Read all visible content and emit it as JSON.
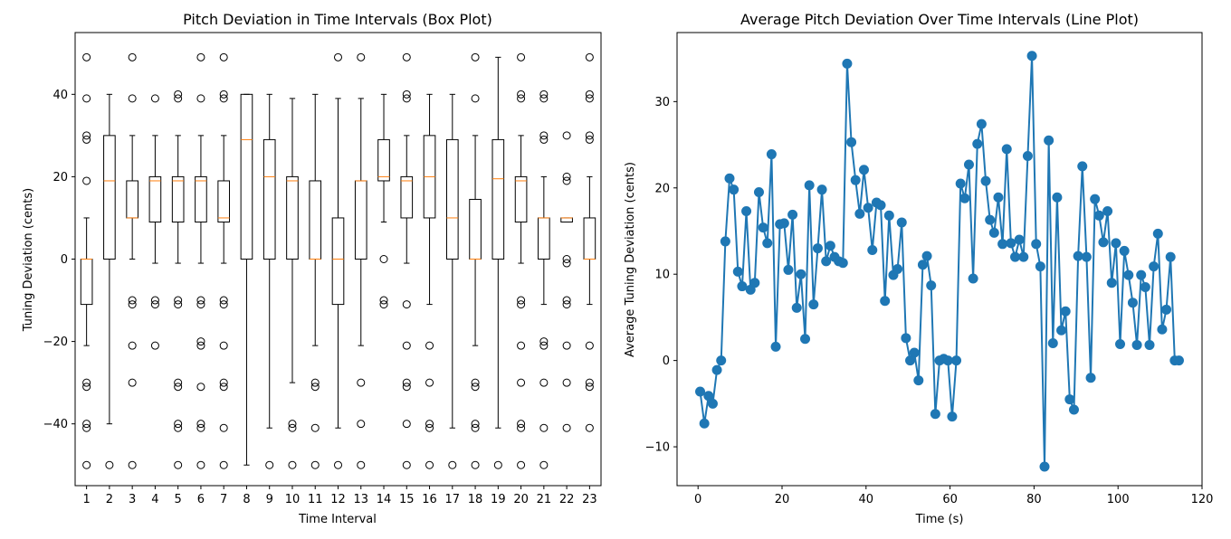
{
  "chart_data": [
    {
      "type": "box",
      "title": "Pitch Deviation in Time Intervals (Box Plot)",
      "xlabel": "Time Interval",
      "ylabel": "Tuning Deviation (cents)",
      "ylim": [
        -55,
        55
      ],
      "yticks": [
        -40,
        -20,
        0,
        20,
        40
      ],
      "categories": [
        "1",
        "2",
        "3",
        "4",
        "5",
        "6",
        "7",
        "8",
        "9",
        "10",
        "11",
        "12",
        "13",
        "14",
        "15",
        "16",
        "17",
        "18",
        "19",
        "20",
        "21",
        "22",
        "23"
      ],
      "box_color": "#000000",
      "median_color": "#ff7f0e",
      "boxes": [
        {
          "q1": -11,
          "median": 0,
          "q3": 0,
          "whislo": -21,
          "whishi": 10,
          "fliers": [
            49,
            39,
            30,
            29,
            19,
            -30,
            -31,
            -40,
            -41,
            -50
          ]
        },
        {
          "q1": 0,
          "median": 19,
          "q3": 30,
          "whislo": -40,
          "whishi": 40,
          "fliers": [
            -50
          ]
        },
        {
          "q1": 10,
          "median": 10,
          "q3": 19,
          "whislo": 0,
          "whishi": 30,
          "fliers": [
            49,
            39,
            -10,
            -11,
            -21,
            -30,
            -50
          ]
        },
        {
          "q1": 9,
          "median": 19,
          "q3": 20,
          "whislo": -1,
          "whishi": 30,
          "fliers": [
            39,
            -10,
            -11,
            -21
          ]
        },
        {
          "q1": 9,
          "median": 19,
          "q3": 20,
          "whislo": -1,
          "whishi": 30,
          "fliers": [
            40,
            39,
            -10,
            -11,
            -30,
            -31,
            -40,
            -41,
            -50
          ]
        },
        {
          "q1": 9,
          "median": 19,
          "q3": 20,
          "whislo": -1,
          "whishi": 30,
          "fliers": [
            49,
            39,
            -10,
            -11,
            -20,
            -21,
            -31,
            -40,
            -41,
            -50
          ]
        },
        {
          "q1": 9,
          "median": 10,
          "q3": 19,
          "whislo": -1,
          "whishi": 30,
          "fliers": [
            49,
            40,
            39,
            -10,
            -11,
            -21,
            -30,
            -31,
            -41,
            -50
          ]
        },
        {
          "q1": 0,
          "median": 29,
          "q3": 40,
          "whislo": -50,
          "whishi": 40,
          "fliers": []
        },
        {
          "q1": 0,
          "median": 20,
          "q3": 29,
          "whislo": -41,
          "whishi": 40,
          "fliers": [
            -50
          ]
        },
        {
          "q1": 0,
          "median": 19,
          "q3": 20,
          "whislo": -30,
          "whishi": 39,
          "fliers": [
            -40,
            -41,
            -50
          ]
        },
        {
          "q1": 0,
          "median": 0,
          "q3": 19,
          "whislo": -21,
          "whishi": 40,
          "fliers": [
            -30,
            -31,
            -41,
            -50
          ]
        },
        {
          "q1": -11,
          "median": 0,
          "q3": 10,
          "whislo": -41,
          "whishi": 39,
          "fliers": [
            49,
            -50
          ]
        },
        {
          "q1": 0,
          "median": 19,
          "q3": 19,
          "whislo": -21,
          "whishi": 39,
          "fliers": [
            49,
            -30,
            -40,
            -50
          ]
        },
        {
          "q1": 19,
          "median": 20,
          "q3": 29,
          "whislo": 9,
          "whishi": 40,
          "fliers": [
            0,
            -10,
            -11
          ]
        },
        {
          "q1": 10,
          "median": 19,
          "q3": 20,
          "whislo": -1,
          "whishi": 30,
          "fliers": [
            49,
            40,
            39,
            -11,
            -21,
            -30,
            -31,
            -40,
            -50
          ]
        },
        {
          "q1": 10,
          "median": 20,
          "q3": 30,
          "whislo": -11,
          "whishi": 40,
          "fliers": [
            -21,
            -30,
            -40,
            -41,
            -50
          ]
        },
        {
          "q1": 0,
          "median": 10,
          "q3": 29,
          "whislo": -41,
          "whishi": 40,
          "fliers": [
            -50
          ]
        },
        {
          "q1": 0,
          "median": 0,
          "q3": 14.5,
          "whislo": -21,
          "whishi": 30,
          "fliers": [
            49,
            39,
            -30,
            -31,
            -40,
            -41,
            -50
          ]
        },
        {
          "q1": 0,
          "median": 19.5,
          "q3": 29,
          "whislo": -41,
          "whishi": 49,
          "fliers": [
            -50
          ]
        },
        {
          "q1": 9,
          "median": 19,
          "q3": 20,
          "whislo": -1,
          "whishi": 30,
          "fliers": [
            49,
            40,
            39,
            -10,
            -11,
            -21,
            -30,
            -40,
            -41,
            -50
          ]
        },
        {
          "q1": 0,
          "median": 10,
          "q3": 10,
          "whislo": -11,
          "whishi": 20,
          "fliers": [
            40,
            39,
            30,
            29,
            -20,
            -21,
            -30,
            -41,
            -50
          ]
        },
        {
          "q1": 9,
          "median": 10,
          "q3": 10,
          "whislo": 9,
          "whishi": 10,
          "fliers": [
            30,
            20,
            19,
            0,
            -1,
            -10,
            -11,
            -21,
            -30,
            -41
          ]
        },
        {
          "q1": 0,
          "median": 0,
          "q3": 10,
          "whislo": -11,
          "whishi": 20,
          "fliers": [
            49,
            40,
            39,
            30,
            29,
            -21,
            -30,
            -31,
            -41
          ]
        }
      ]
    },
    {
      "type": "line",
      "title": "Average Pitch Deviation Over Time Intervals (Line Plot)",
      "xlabel": "Time (s)",
      "ylabel": "Average Tuning Deviation (cents)",
      "xlim": [
        -5,
        120
      ],
      "ylim": [
        -14.5,
        38
      ],
      "xticks": [
        0,
        20,
        40,
        60,
        80,
        100,
        120
      ],
      "yticks": [
        -10,
        0,
        10,
        20,
        30
      ],
      "color": "#1f77b4",
      "x": [
        0.5,
        1.5,
        2.5,
        3.5,
        4.5,
        5.5,
        6.5,
        7.5,
        8.5,
        9.5,
        10.5,
        11.5,
        12.5,
        13.5,
        14.5,
        15.5,
        16.5,
        17.5,
        18.5,
        19.5,
        20.5,
        21.5,
        22.5,
        23.5,
        24.5,
        25.5,
        26.5,
        27.5,
        28.5,
        29.5,
        30.5,
        31.5,
        32.5,
        33.5,
        34.5,
        35.5,
        36.5,
        37.5,
        38.5,
        39.5,
        40.5,
        41.5,
        42.5,
        43.5,
        44.5,
        45.5,
        46.5,
        47.5,
        48.5,
        49.5,
        50.5,
        51.5,
        52.5,
        53.5,
        54.5,
        55.5,
        56.5,
        57.5,
        58.5,
        59.5,
        60.5,
        61.5,
        62.5,
        63.5,
        64.5,
        65.5,
        66.5,
        67.5,
        68.5,
        69.5,
        70.5,
        71.5,
        72.5,
        73.5,
        74.5,
        75.5,
        76.5,
        77.5,
        78.5,
        79.5,
        80.5,
        81.5,
        82.5,
        83.5,
        84.5,
        85.5,
        86.5,
        87.5,
        88.5,
        89.5,
        90.5,
        91.5,
        92.5,
        93.5,
        94.5,
        95.5,
        96.5,
        97.5,
        98.5,
        99.5,
        100.5,
        101.5,
        102.5,
        103.5,
        104.5,
        105.5,
        106.5,
        107.5,
        108.5,
        109.5,
        110.5,
        111.5,
        112.5,
        113.5,
        114.5
      ],
      "y": [
        -3.6,
        -7.3,
        -4.1,
        -5.0,
        -1.1,
        0.0,
        13.8,
        21.1,
        19.8,
        10.3,
        8.6,
        17.3,
        8.2,
        9.0,
        19.5,
        15.4,
        13.6,
        23.9,
        1.6,
        15.8,
        15.9,
        10.5,
        16.9,
        6.1,
        10.0,
        2.5,
        20.3,
        6.5,
        13.0,
        19.8,
        11.5,
        13.3,
        12.0,
        11.5,
        11.3,
        34.4,
        25.3,
        20.9,
        17.0,
        22.1,
        17.7,
        12.8,
        18.3,
        18.0,
        6.9,
        16.8,
        9.9,
        10.6,
        16.0,
        2.6,
        0.0,
        0.9,
        -2.3,
        11.1,
        12.1,
        8.7,
        -6.2,
        0.0,
        0.2,
        0.0,
        -6.5,
        0.0,
        20.5,
        18.8,
        22.7,
        9.5,
        25.1,
        27.4,
        20.8,
        16.3,
        14.8,
        18.9,
        13.5,
        24.5,
        13.6,
        12.0,
        14.0,
        12.0,
        23.7,
        35.3,
        13.5,
        10.9,
        -12.3,
        25.5,
        2.0,
        18.9,
        3.5,
        5.7,
        -4.5,
        -5.7,
        12.1,
        22.5,
        12.0,
        -2.0,
        18.7,
        16.8,
        13.7,
        17.3,
        9.0,
        13.6,
        1.9,
        12.7,
        9.9,
        6.7,
        1.8,
        9.9,
        8.5,
        1.8,
        10.9,
        14.7,
        3.6,
        5.9,
        12.0,
        0.0,
        0.0
      ]
    }
  ]
}
